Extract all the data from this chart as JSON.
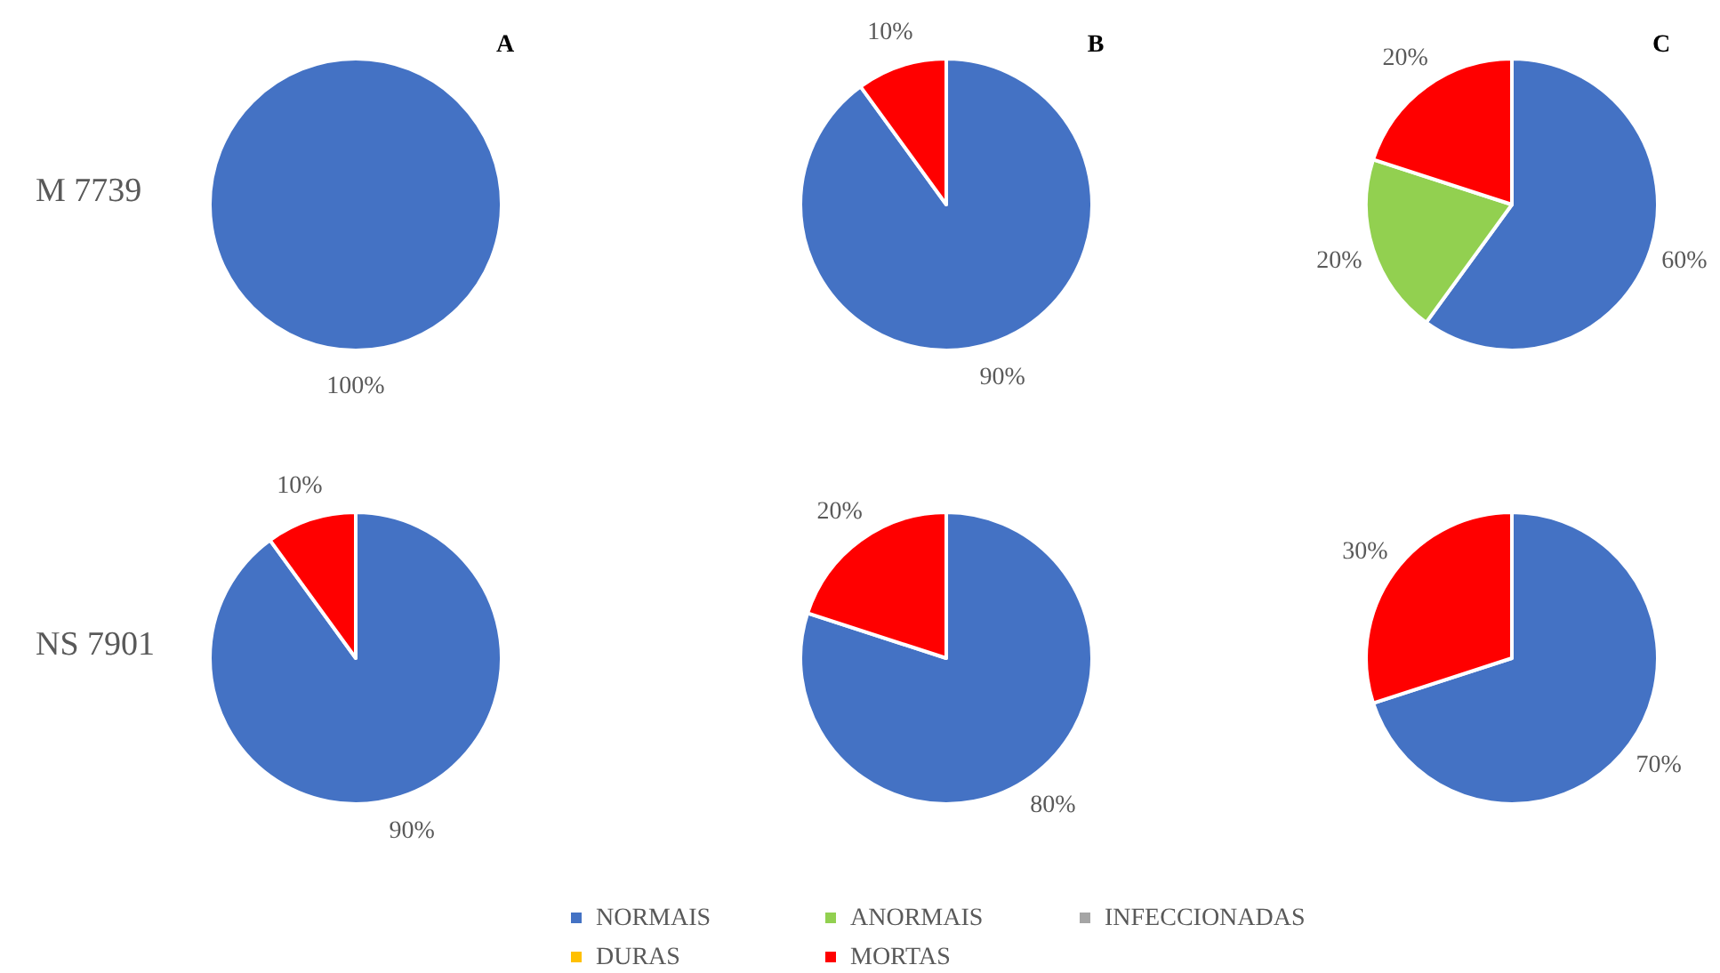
{
  "chart_data": [
    {
      "type": "pie",
      "title": "A",
      "ylabel": "M 7739",
      "legend": "bottom",
      "categories": [
        "NORMAIS",
        "ANORMAIS",
        "INFECCIONADAS",
        "DURAS",
        "MORTAS"
      ],
      "values": [
        100,
        0,
        0,
        0,
        0
      ],
      "colors": [
        "#4472c4",
        "#92d050",
        "#a5a5a5",
        "#ffc000",
        "#ff0000"
      ],
      "value_labels": [
        "100%",
        null,
        null,
        null,
        null
      ]
    },
    {
      "type": "pie",
      "title": "B",
      "categories": [
        null,
        null,
        null,
        null,
        null
      ],
      "values": [
        90,
        0,
        0,
        0,
        10
      ],
      "colors": [
        "#4472c4",
        "#92d050",
        "#a5a5a5",
        "#ffc000",
        "#ff0000"
      ],
      "value_labels": [
        "90%",
        null,
        null,
        null,
        "10%"
      ]
    },
    {
      "type": "pie",
      "title": "C",
      "categories": [
        null,
        null,
        null,
        null,
        null
      ],
      "values": [
        60,
        20,
        0,
        0,
        20
      ],
      "colors": [
        "#4472c4",
        "#92d050",
        "#a5a5a5",
        "#ffc000",
        "#ff0000"
      ],
      "value_labels": [
        "60%",
        "20%",
        null,
        null,
        "20%"
      ]
    },
    {
      "type": "pie",
      "ylabel": "NS 7901",
      "categories": [
        null,
        null,
        null,
        null,
        null
      ],
      "values": [
        90,
        0,
        0,
        0,
        10
      ],
      "colors": [
        "#4472c4",
        "#92d050",
        "#a5a5a5",
        "#ffc000",
        "#ff0000"
      ],
      "value_labels": [
        "90%",
        null,
        null,
        null,
        "10%"
      ]
    },
    {
      "type": "pie",
      "categories": [
        null,
        null,
        null,
        null,
        null
      ],
      "values": [
        80,
        0,
        0,
        0,
        20
      ],
      "colors": [
        "#4472c4",
        "#92d050",
        "#a5a5a5",
        "#ffc000",
        "#ff0000"
      ],
      "value_labels": [
        "80%",
        null,
        null,
        null,
        "20%"
      ]
    },
    {
      "type": "pie",
      "categories": [
        null,
        null,
        null,
        null,
        null
      ],
      "values": [
        70,
        0,
        0,
        0,
        30
      ],
      "colors": [
        "#4472c4",
        "#92d050",
        "#a5a5a5",
        "#ffc000",
        "#ff0000"
      ],
      "value_labels": [
        "70%",
        null,
        null,
        null,
        "30%"
      ]
    }
  ]
}
